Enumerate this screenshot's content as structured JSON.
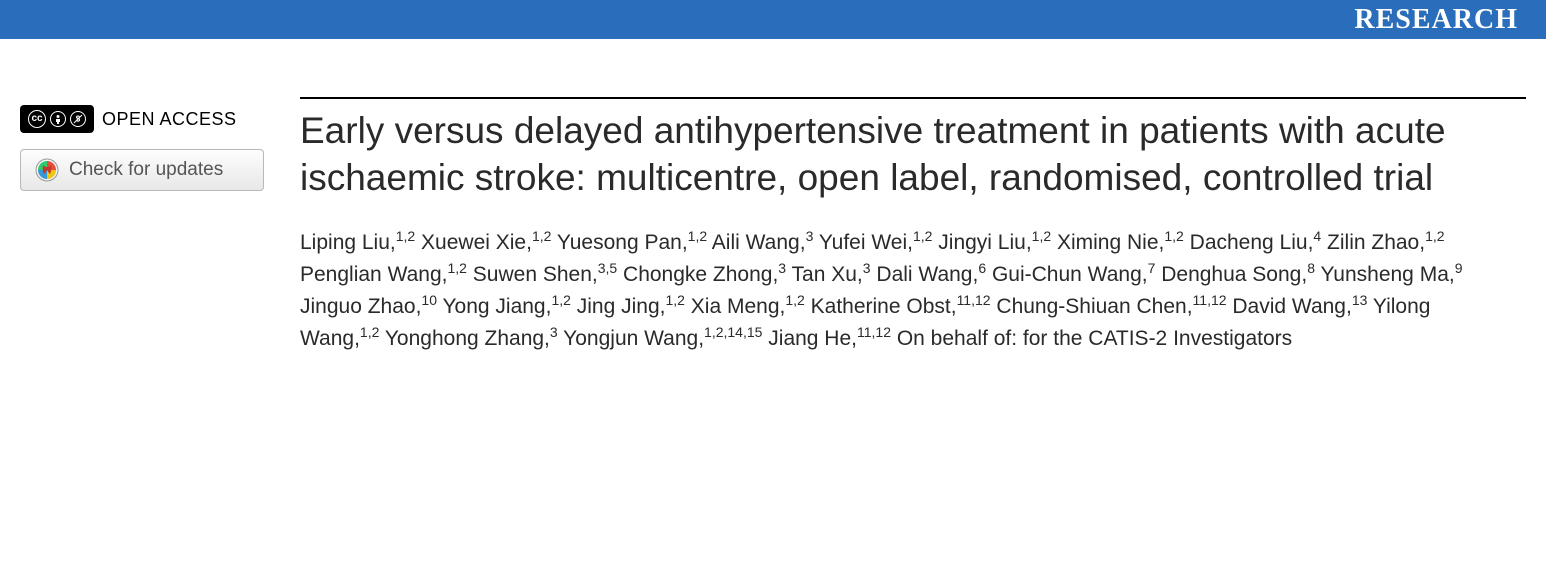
{
  "banner": {
    "label": "RESEARCH",
    "background_color": "#2a6ebb",
    "text_color": "#ffffff"
  },
  "sidebar": {
    "open_access_label": "OPEN ACCESS",
    "check_updates_label": "Check for updates"
  },
  "article": {
    "title": "Early versus delayed antihypertensive treatment in patients with acute ischaemic stroke: multicentre, open label, randomised, controlled trial",
    "authors": [
      {
        "name": "Liping Liu",
        "affil": "1,2"
      },
      {
        "name": "Xuewei Xie",
        "affil": "1,2"
      },
      {
        "name": "Yuesong Pan",
        "affil": "1,2"
      },
      {
        "name": "Aili Wang",
        "affil": "3"
      },
      {
        "name": "Yufei Wei",
        "affil": "1,2"
      },
      {
        "name": "Jingyi Liu",
        "affil": "1,2"
      },
      {
        "name": "Ximing Nie",
        "affil": "1,2"
      },
      {
        "name": "Dacheng Liu",
        "affil": "4"
      },
      {
        "name": "Zilin Zhao",
        "affil": "1,2"
      },
      {
        "name": "Penglian Wang",
        "affil": "1,2"
      },
      {
        "name": "Suwen Shen",
        "affil": "3,5"
      },
      {
        "name": "Chongke Zhong",
        "affil": "3"
      },
      {
        "name": "Tan Xu",
        "affil": "3"
      },
      {
        "name": "Dali Wang",
        "affil": "6"
      },
      {
        "name": "Gui-Chun Wang",
        "affil": "7"
      },
      {
        "name": "Denghua Song",
        "affil": "8"
      },
      {
        "name": "Yunsheng Ma",
        "affil": "9"
      },
      {
        "name": "Jinguo Zhao",
        "affil": "10"
      },
      {
        "name": "Yong Jiang",
        "affil": "1,2"
      },
      {
        "name": "Jing Jing",
        "affil": "1,2"
      },
      {
        "name": "Xia Meng",
        "affil": "1,2"
      },
      {
        "name": "Katherine Obst",
        "affil": "11,12"
      },
      {
        "name": "Chung-Shiuan Chen",
        "affil": "11,12"
      },
      {
        "name": "David Wang",
        "affil": "13"
      },
      {
        "name": "Yilong Wang",
        "affil": "1,2"
      },
      {
        "name": "Yonghong Zhang",
        "affil": "3"
      },
      {
        "name": "Yongjun Wang",
        "affil": "1,2,14,15"
      },
      {
        "name": "Jiang He",
        "affil": "11,12"
      }
    ],
    "behalf_text": "On behalf of: for the CATIS-2 Investigators"
  },
  "colors": {
    "banner_bg": "#2a6ebb",
    "text_dark": "#2a2a2a",
    "border_dark": "#000000",
    "button_border": "#b8b8b8",
    "button_text": "#555555"
  },
  "typography": {
    "title_fontsize": 37,
    "authors_fontsize": 21,
    "banner_fontsize": 28,
    "open_access_fontsize": 18,
    "button_fontsize": 19
  }
}
